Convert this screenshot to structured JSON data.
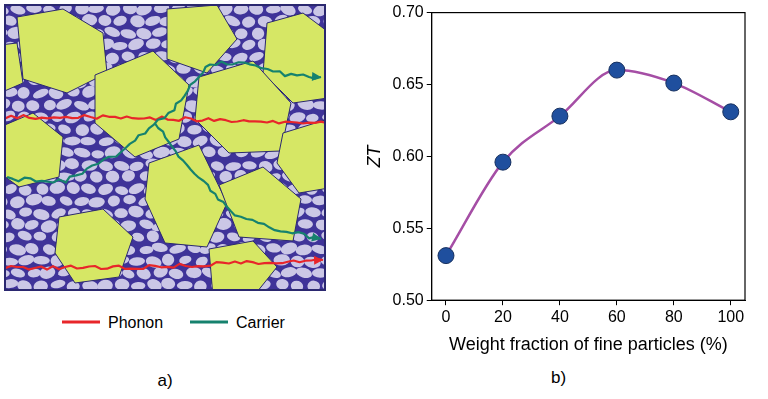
{
  "chart_data": {
    "type": "scatter",
    "xlabel": "Weight fraction of fine particles (%)",
    "ylabel": "ZT",
    "x": [
      0,
      20,
      40,
      60,
      80,
      100
    ],
    "series": [
      {
        "type": "scatter",
        "color": "#1f4f9e",
        "marker": "circle",
        "values": [
          0.531,
          0.596,
          0.628,
          0.66,
          0.651,
          0.631
        ]
      },
      {
        "type": "line",
        "color": "#a54ea5",
        "line_style": "solid",
        "marker": "none",
        "values": [
          0.531,
          0.596,
          0.628,
          0.66,
          0.651,
          0.631
        ]
      }
    ],
    "xlim": [
      -5,
      105
    ],
    "xticks": [
      0,
      20,
      40,
      60,
      80,
      100
    ],
    "ylim": [
      0.5,
      0.7
    ],
    "yticks": [
      {
        "value": 0.5,
        "label": "0.50"
      },
      {
        "value": 0.55,
        "label": "0.55"
      },
      {
        "value": 0.6,
        "label": "0.60"
      },
      {
        "value": 0.65,
        "label": "0.65"
      },
      {
        "value": 0.7,
        "label": "0.70"
      }
    ],
    "grid": false
  },
  "diagram": {
    "legend": [
      {
        "label": "Phonon",
        "color": "#e8262a"
      },
      {
        "label": "Carrier",
        "color": "#16826e"
      }
    ]
  },
  "panel_labels": [
    "a)",
    "b)"
  ]
}
